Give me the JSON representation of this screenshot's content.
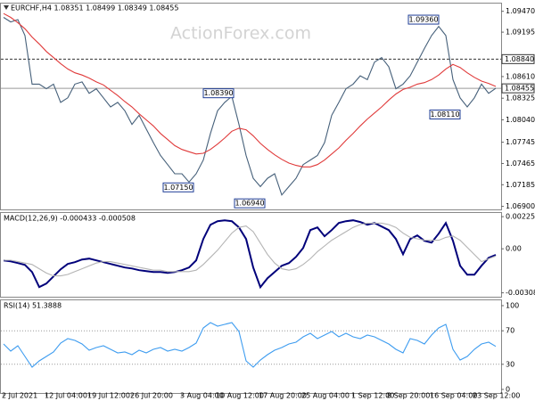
{
  "chart_data": [
    {
      "type": "line",
      "title": "EURCHF,H4 1.08351 1.08499 1.08349 1.08455",
      "watermark": "ActionForex.com",
      "series": [
        {
          "color": "#46607a",
          "values": [
            1.0939,
            1.0933,
            1.0936,
            1.0915,
            1.0851,
            1.0851,
            1.0845,
            1.0851,
            1.0827,
            1.0833,
            1.0851,
            1.0854,
            1.0839,
            1.0845,
            1.0833,
            1.0821,
            1.0827,
            1.0816,
            1.0798,
            1.081,
            1.0792,
            1.0774,
            1.0757,
            1.0745,
            1.0733,
            1.0733,
            1.0722,
            1.0733,
            1.0751,
            1.0786,
            1.0816,
            1.0827,
            1.0835,
            1.0798,
            1.0757,
            1.0727,
            1.0716,
            1.0727,
            1.0733,
            1.0705,
            1.0716,
            1.0727,
            1.0745,
            1.0751,
            1.0757,
            1.0774,
            1.081,
            1.0827,
            1.0845,
            1.0851,
            1.0862,
            1.0857,
            1.088,
            1.0886,
            1.0874,
            1.0845,
            1.0851,
            1.0862,
            1.088,
            1.0898,
            1.0915,
            1.0927,
            1.0915,
            1.0857,
            1.0833,
            1.0821,
            1.0833,
            1.0851,
            1.0839,
            1.08455
          ]
        },
        {
          "color": "#e03a3a",
          "values": [
            1.0944,
            1.0939,
            1.0932,
            1.0924,
            1.0913,
            1.0904,
            1.0894,
            1.0886,
            1.0878,
            1.0871,
            1.0866,
            1.0863,
            1.0859,
            1.0854,
            1.085,
            1.0843,
            1.0836,
            1.0828,
            1.0821,
            1.0812,
            1.0804,
            1.0796,
            1.0786,
            1.0778,
            1.077,
            1.0765,
            1.0762,
            1.0759,
            1.076,
            1.0765,
            1.0772,
            1.078,
            1.0789,
            1.0793,
            1.0791,
            1.0783,
            1.0773,
            1.0765,
            1.0758,
            1.0752,
            1.0747,
            1.0744,
            1.0742,
            1.0742,
            1.0745,
            1.0751,
            1.0759,
            1.0767,
            1.0777,
            1.0786,
            1.0796,
            1.0805,
            1.0813,
            1.0821,
            1.083,
            1.0838,
            1.0844,
            1.0847,
            1.0851,
            1.0853,
            1.0857,
            1.0863,
            1.0871,
            1.0877,
            1.0873,
            1.0866,
            1.086,
            1.0855,
            1.0852,
            1.0848
          ]
        }
      ],
      "ylim": [
        1.0686,
        1.0956
      ],
      "yticks": [
        {
          "value": 1.0947,
          "label": "1.09470"
        },
        {
          "value": 1.09195,
          "label": "1.09195"
        },
        {
          "value": 1.0861,
          "label": "1.08610"
        },
        {
          "value": 1.08325,
          "label": "1.08325"
        },
        {
          "value": 1.0804,
          "label": "1.08040"
        },
        {
          "value": 1.07745,
          "label": "1.07745"
        },
        {
          "value": 1.07465,
          "label": "1.07465"
        },
        {
          "value": 1.07185,
          "label": "1.07185"
        },
        {
          "value": 1.069,
          "label": "1.06900"
        }
      ],
      "hlines": [
        {
          "value": 1.0884,
          "label": "1.08840"
        },
        {
          "value": 1.08455,
          "label": "1.08455"
        }
      ],
      "annotations": [
        {
          "value": 1.0936,
          "label": "1.09360"
        },
        {
          "value": 1.0839,
          "label": "1.08390"
        },
        {
          "value": 1.0715,
          "label": "1.07150"
        },
        {
          "value": 1.0694,
          "label": "1.06940"
        },
        {
          "value": 1.0811,
          "label": "1.08110"
        }
      ]
    },
    {
      "type": "line",
      "title": "MACD(12,26,9) -0.000433 -0.000508",
      "series": [
        {
          "color": "#00007a",
          "values": [
            -0.00081,
            -0.00088,
            -0.001,
            -0.00113,
            -0.00163,
            -0.00269,
            -0.00244,
            -0.00194,
            -0.00144,
            -0.00106,
            -0.00094,
            -0.00075,
            -0.00069,
            -0.00081,
            -0.00094,
            -0.00106,
            -0.00119,
            -0.00131,
            -0.00138,
            -0.0015,
            -0.00156,
            -0.00163,
            -0.00163,
            -0.00169,
            -0.00163,
            -0.0015,
            -0.00131,
            -0.00081,
            0.00069,
            0.00169,
            0.00194,
            0.002,
            0.00194,
            0.0015,
            0.00069,
            -0.00131,
            -0.00269,
            -0.00206,
            -0.00163,
            -0.00119,
            -0.001,
            -0.00056,
            6e-05,
            0.00131,
            0.0015,
            0.00088,
            0.00131,
            0.00181,
            0.00194,
            0.002,
            0.00188,
            0.00169,
            0.00181,
            0.00156,
            0.00131,
            0.00069,
            -0.00038,
            0.00069,
            0.00094,
            0.00056,
            0.00044,
            0.00106,
            0.00181,
            0.00056,
            -0.00119,
            -0.00181,
            -0.00181,
            -0.00119,
            -0.00063,
            -0.000433
          ]
        },
        {
          "color": "#b4b4b4",
          "values": [
            -0.0008,
            -0.0008,
            -0.0009,
            -0.001,
            -0.0011,
            -0.0014,
            -0.0017,
            -0.0019,
            -0.0019,
            -0.0018,
            -0.0016,
            -0.0014,
            -0.0012,
            -0.001,
            -0.0009,
            -0.0009,
            -0.001,
            -0.0011,
            -0.0012,
            -0.0013,
            -0.0014,
            -0.0015,
            -0.0015,
            -0.0016,
            -0.0016,
            -0.0016,
            -0.0016,
            -0.0015,
            -0.0011,
            -0.0006,
            -0.0001,
            0.0005,
            0.0011,
            0.0015,
            0.0016,
            0.0012,
            0.0004,
            -0.0004,
            -0.001,
            -0.0014,
            -0.0015,
            -0.0014,
            -0.0011,
            -0.0007,
            -0.0002,
            0.0002,
            0.0006,
            0.0009,
            0.0012,
            0.0015,
            0.0017,
            0.0018,
            0.0018,
            0.0018,
            0.0017,
            0.0015,
            0.0011,
            0.0008,
            0.0007,
            0.0006,
            0.0006,
            0.0006,
            0.0008,
            0.0009,
            0.0006,
            0.0001,
            -0.0004,
            -0.0009,
            -0.0007,
            -0.000508
          ]
        }
      ],
      "ylim": [
        -0.0033,
        0.00245
      ],
      "yticks": [
        0.002254,
        {
          "value": 0,
          "label": "0.00"
        },
        -0.003088
      ]
    },
    {
      "type": "line",
      "title": "RSI(14) 51.3888",
      "categories": [
        "2 Jul 2021",
        null,
        null,
        null,
        null,
        null,
        "12 Jul 04:00",
        null,
        null,
        null,
        null,
        null,
        "19 Jul 12:00",
        null,
        null,
        null,
        null,
        null,
        "26 Jul 20:00",
        null,
        null,
        null,
        null,
        null,
        null,
        "3 Aug 04:00",
        null,
        null,
        null,
        null,
        "10 Aug 12:00",
        null,
        null,
        null,
        null,
        null,
        "17 Aug 20:00",
        null,
        null,
        null,
        null,
        null,
        "25 Aug 04:00",
        null,
        null,
        null,
        null,
        null,
        null,
        "1 Sep 12:00",
        null,
        null,
        null,
        null,
        "8 Sep 20:00",
        null,
        null,
        null,
        null,
        null,
        "16 Sep 04:00",
        null,
        null,
        null,
        null,
        null,
        "23 Sep 12:00",
        null,
        null,
        null
      ],
      "series": [
        {
          "color": "#3d9cf0",
          "values": [
            54.3,
            45.7,
            52.1,
            39.4,
            26.6,
            34,
            39.4,
            44.7,
            55.3,
            60.6,
            58.5,
            54.3,
            46.8,
            50,
            52.1,
            47.9,
            43.6,
            44.7,
            41.5,
            46.8,
            43.6,
            47.9,
            50,
            45.7,
            47.9,
            45.7,
            50,
            55.3,
            73.4,
            79.8,
            75.5,
            77.7,
            79.8,
            69.1,
            34,
            26.6,
            35.1,
            41.5,
            46.8,
            50,
            54.3,
            56.4,
            62.8,
            67,
            60.6,
            64.9,
            69.1,
            62.8,
            67,
            62.8,
            60.6,
            64.9,
            62.8,
            58.5,
            54.3,
            47.9,
            43.6,
            60.6,
            58.5,
            54.3,
            64.9,
            73.4,
            77.7,
            47.9,
            35.1,
            39.4,
            47.9,
            54.3,
            56.4,
            51.3888
          ]
        }
      ],
      "ylim": [
        0,
        100
      ],
      "yticks": [
        100,
        70,
        30,
        0
      ]
    }
  ]
}
